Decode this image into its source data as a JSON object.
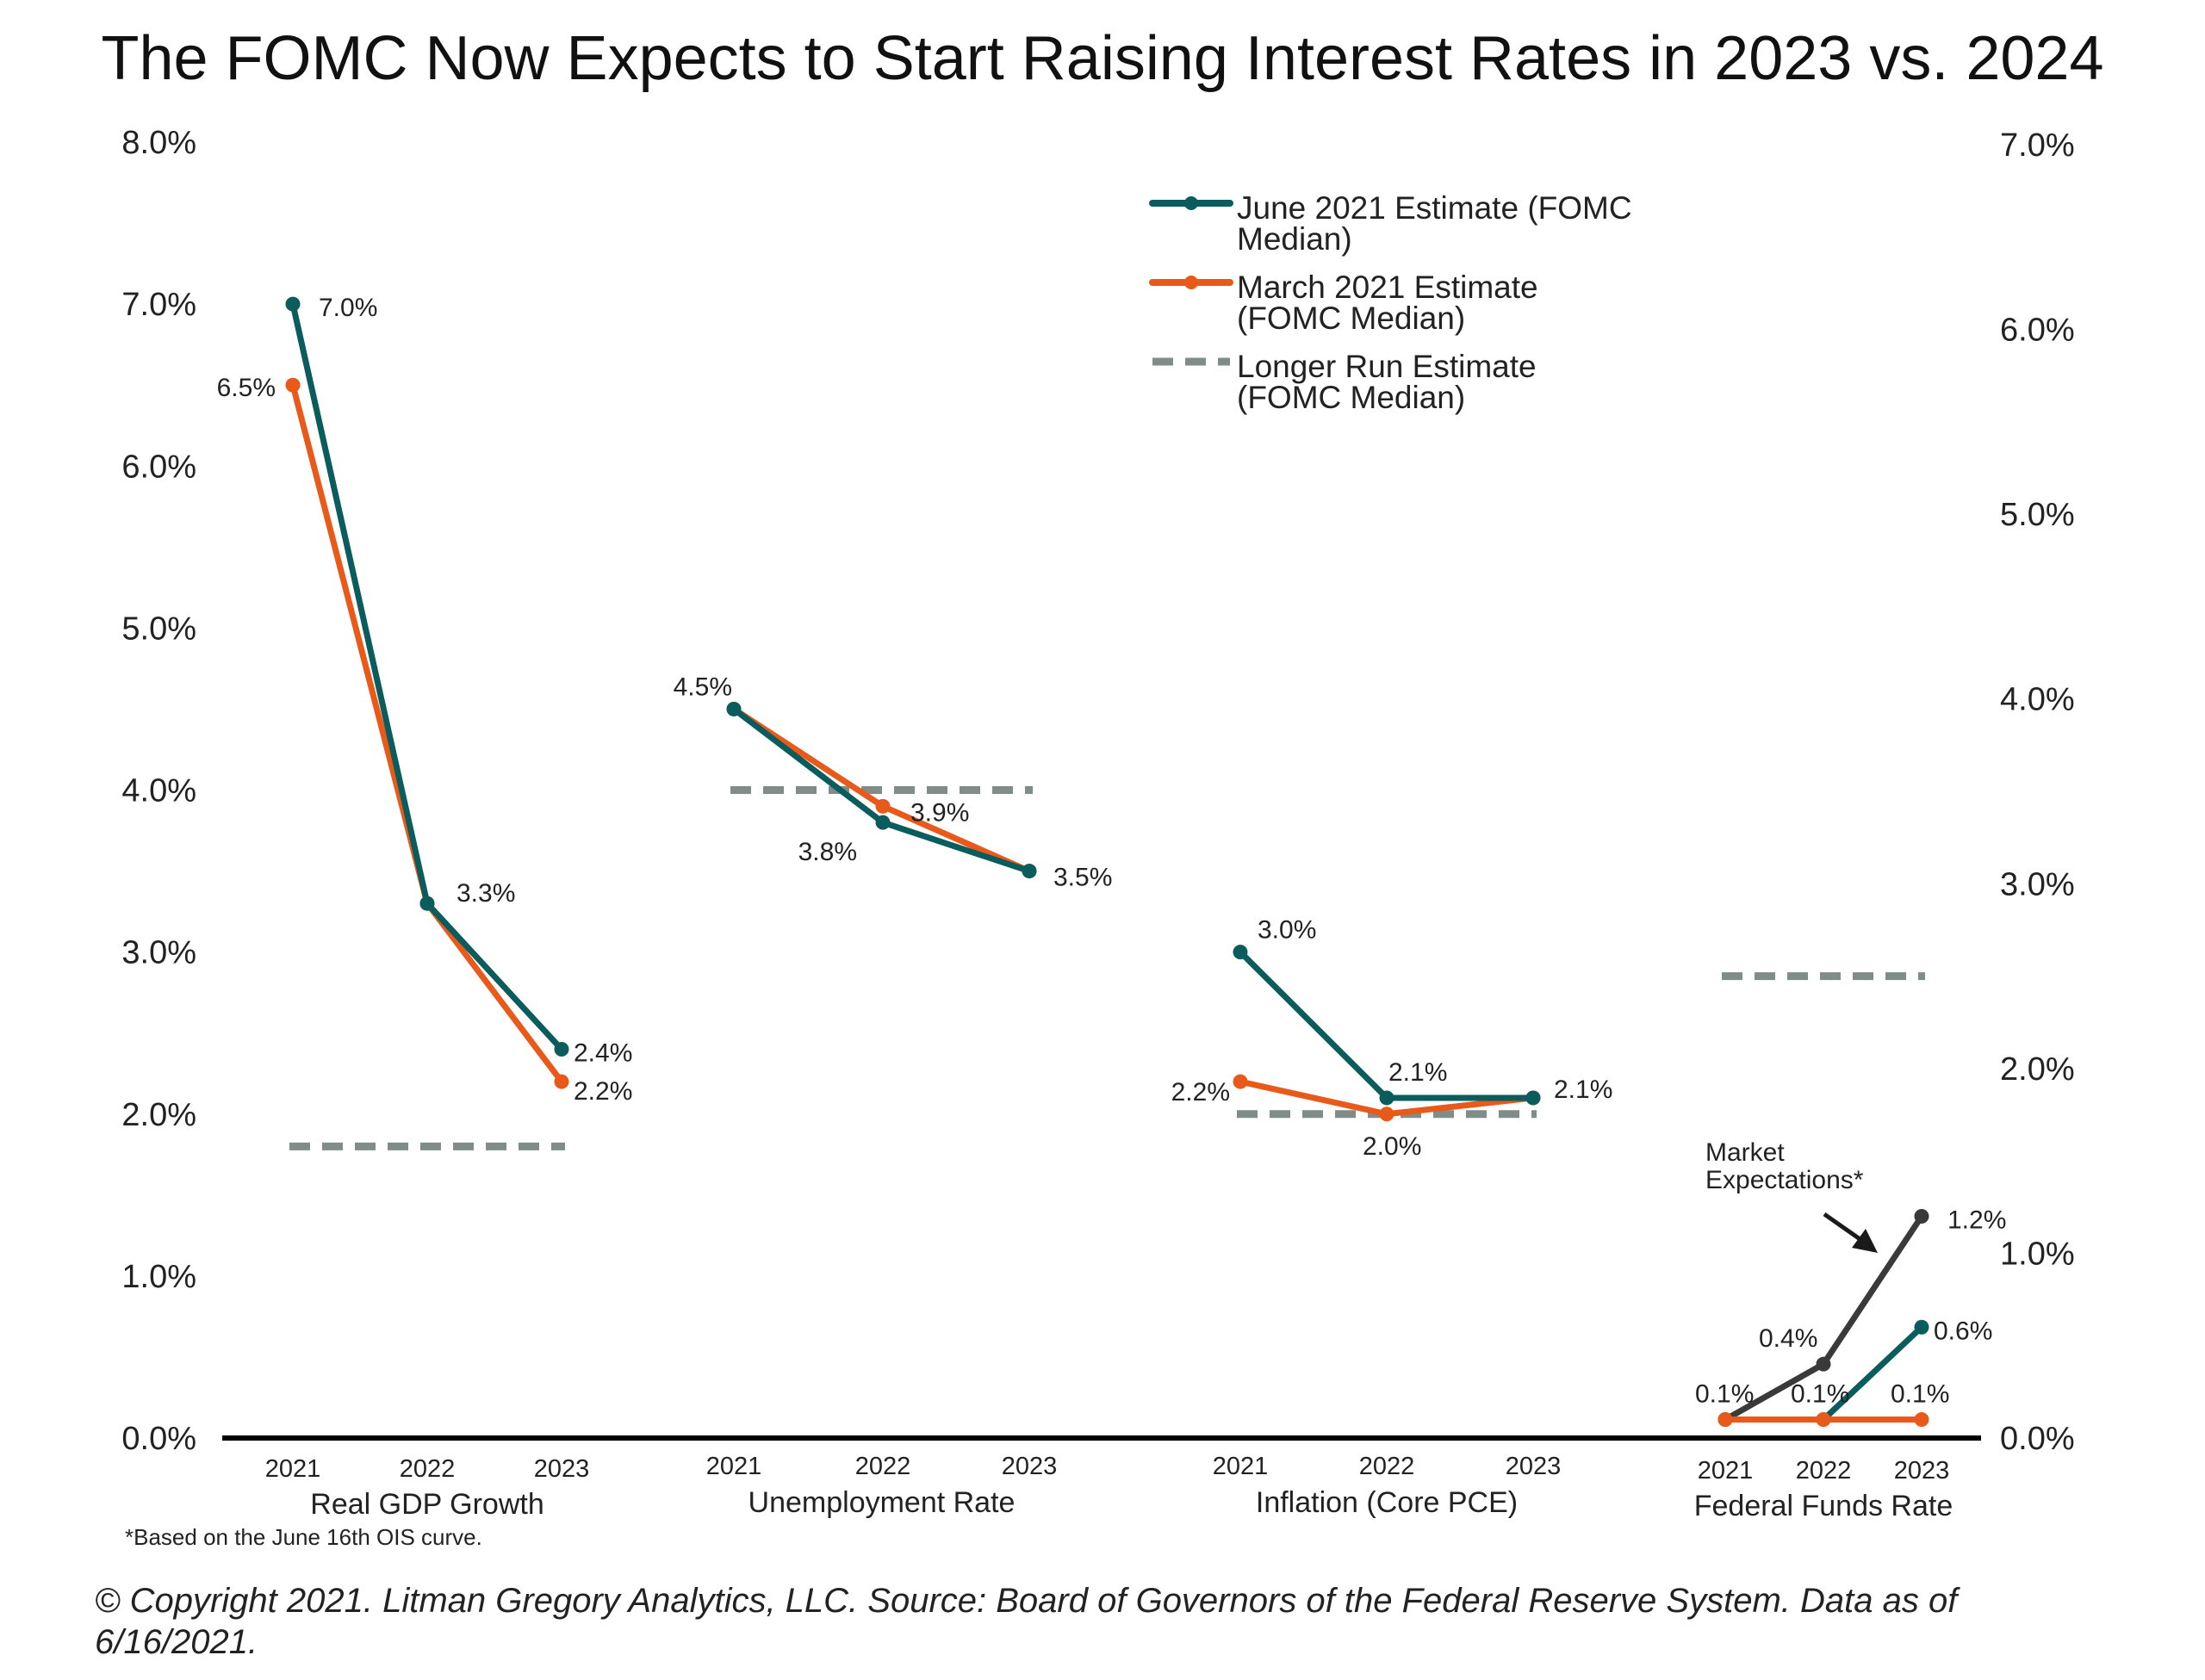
{
  "title": "The FOMC Now Expects to Start Raising Interest Rates in 2023 vs. 2024",
  "footnote": "*Based on the June 16th OIS curve.",
  "footer": {
    "line1": "© Copyright 2021. Litman Gregory Analytics, LLC. Source: Board of Governors of the Federal Reserve System. Data as of",
    "line2": "6/16/2021."
  },
  "legend": {
    "june": [
      "June 2021 Estimate (FOMC",
      "Median)"
    ],
    "march": [
      "March 2021 Estimate",
      "(FOMC Median)"
    ],
    "longer": [
      "Longer Run Estimate",
      "(FOMC Median)"
    ]
  },
  "annotation": [
    "Market",
    "Expectations*"
  ],
  "colors": {
    "june": "#0b5c5c",
    "march": "#e8591a",
    "longer": "#7f8c88",
    "market": "#3a3a3a",
    "axis": "#000000"
  },
  "chart_data": {
    "type": "line",
    "left_axis": {
      "ylim": [
        0,
        8
      ],
      "ticks": [
        "0.0%",
        "1.0%",
        "2.0%",
        "3.0%",
        "4.0%",
        "5.0%",
        "6.0%",
        "7.0%",
        "8.0%"
      ]
    },
    "right_axis": {
      "ylim": [
        0,
        7
      ],
      "ticks": [
        "0.0%",
        "1.0%",
        "2.0%",
        "3.0%",
        "4.0%",
        "5.0%",
        "6.0%",
        "7.0%"
      ]
    },
    "groups": [
      {
        "name": "Real GDP Growth",
        "axis": "left",
        "years": [
          "2021",
          "2022",
          "2023"
        ],
        "june": [
          7.0,
          3.3,
          2.4
        ],
        "june_labels": [
          "7.0%",
          "3.3%",
          "2.4%"
        ],
        "march": [
          6.5,
          3.3,
          2.2
        ],
        "march_labels": [
          "6.5%",
          "",
          "2.2%"
        ],
        "longer_run": 1.8
      },
      {
        "name": "Unemployment Rate",
        "axis": "left",
        "years": [
          "2021",
          "2022",
          "2023"
        ],
        "june": [
          4.5,
          3.8,
          3.5
        ],
        "june_labels": [
          "",
          "3.8%",
          "3.5%"
        ],
        "march": [
          4.5,
          3.9,
          3.5
        ],
        "march_labels": [
          "4.5%",
          "3.9%",
          ""
        ],
        "longer_run": 4.0
      },
      {
        "name": "Inflation (Core PCE)",
        "axis": "left",
        "years": [
          "2021",
          "2022",
          "2023"
        ],
        "june": [
          3.0,
          2.1,
          2.1
        ],
        "june_labels": [
          "3.0%",
          "2.1%",
          "2.1%"
        ],
        "march": [
          2.2,
          2.0,
          2.1
        ],
        "march_labels": [
          "2.2%",
          "2.0%",
          ""
        ],
        "longer_run": 2.0
      },
      {
        "name": "Federal Funds Rate",
        "axis": "right",
        "years": [
          "2021",
          "2022",
          "2023"
        ],
        "june": [
          0.1,
          0.1,
          0.6
        ],
        "june_labels": [
          "",
          "0.1%",
          "0.6%"
        ],
        "march": [
          0.1,
          0.1,
          0.1
        ],
        "march_labels": [
          "0.1%",
          "",
          "0.1%"
        ],
        "market": [
          0.1,
          0.4,
          1.2
        ],
        "market_labels": [
          "",
          "0.4%",
          "1.2%"
        ],
        "longer_run": 2.5
      }
    ]
  }
}
